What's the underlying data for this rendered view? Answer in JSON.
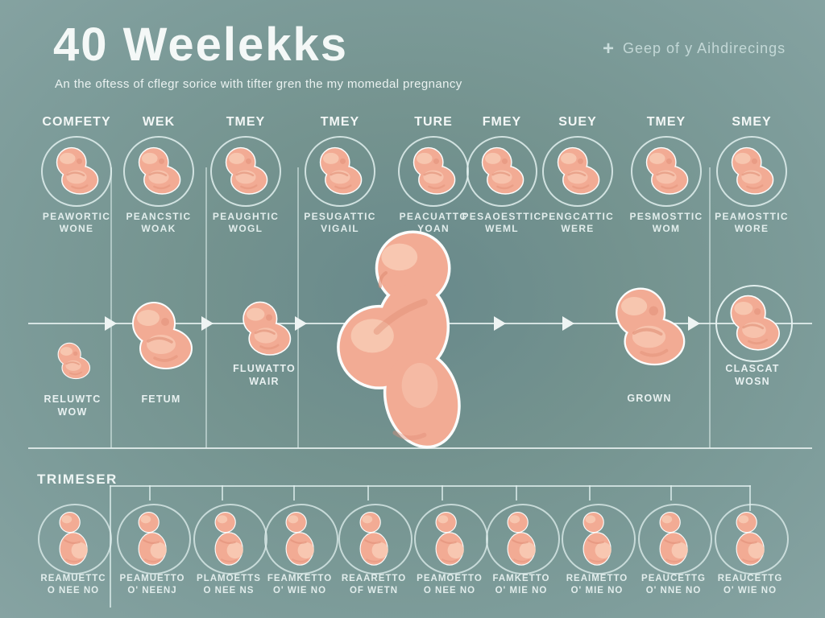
{
  "page": {
    "title": "40 Weelekks",
    "subtitle": "An the oftess of cflegr sorice with tifter gren the my momedal pregnancy",
    "corner_plus": "+",
    "corner_note": "Geep of y Aihdirecings"
  },
  "week_columns": [
    {
      "header": "COMFETY",
      "sub1": "PEAWORTIC",
      "sub2": "WONE"
    },
    {
      "header": "WEK",
      "sub1": "PEANCSTIC",
      "sub2": "WOAK"
    },
    {
      "header": "TMEY",
      "sub1": "PEAUGHTIC",
      "sub2": "WOGL"
    },
    {
      "header": "TMEY",
      "sub1": "PESUGATTIC",
      "sub2": "VIGAIL"
    },
    {
      "header": "TURE",
      "sub1": "PEACUATTC",
      "sub2": "YOAN"
    },
    {
      "header": "FMEY",
      "sub1": "PESAOESTTIC",
      "sub2": "WEML"
    },
    {
      "header": "SUEY",
      "sub1": "PENGCATTIC",
      "sub2": "WERE"
    },
    {
      "header": "TMEY",
      "sub1": "PESMOSTTIC",
      "sub2": "WOM"
    },
    {
      "header": "SMEY",
      "sub1": "PEAMOSTTIC",
      "sub2": "WORE"
    }
  ],
  "growth_timeline": {
    "stage1_line1": "RELUWTC",
    "stage1_line2": "WOW",
    "stage2_label": "FETUM",
    "stage3_line1": "FLUWATTO",
    "stage3_line2": "WAIR",
    "stage4_label": "GROWN",
    "stage5_line1": "CLASCAT",
    "stage5_line2": "WOSN"
  },
  "trimester": {
    "label": "TRIMESER",
    "ovals": [
      {
        "line1": "REAMUETTC",
        "line2": "O NEE NO"
      },
      {
        "line1": "PEAMUETTO",
        "line2": "O' NEENJ"
      },
      {
        "line1": "PLAMOETTS",
        "line2": "O NEE NS"
      },
      {
        "line1": "FEAMKETTO",
        "line2": "O' WIE NO"
      },
      {
        "line1": "REAARETTO",
        "line2": "OF WETN"
      },
      {
        "line1": "PEAMOETTO",
        "line2": "O NEE NO"
      },
      {
        "line1": "FAMKETTO",
        "line2": "O' MIE NO"
      },
      {
        "line1": "REAIMETTO",
        "line2": "O' MIE NO"
      },
      {
        "line1": "PEAUCETTG",
        "line2": "O' NNE NO"
      },
      {
        "line1": "REAUCETTG",
        "line2": "O' WIE NO"
      }
    ]
  },
  "colors": {
    "background": "#7b9b99",
    "line": "#dcebea",
    "text": "#f3f7f6",
    "skin": "#f2ab94",
    "skin_light": "#f8cab4",
    "skin_shade": "#e08d75",
    "outline": "#fbfdfd"
  }
}
